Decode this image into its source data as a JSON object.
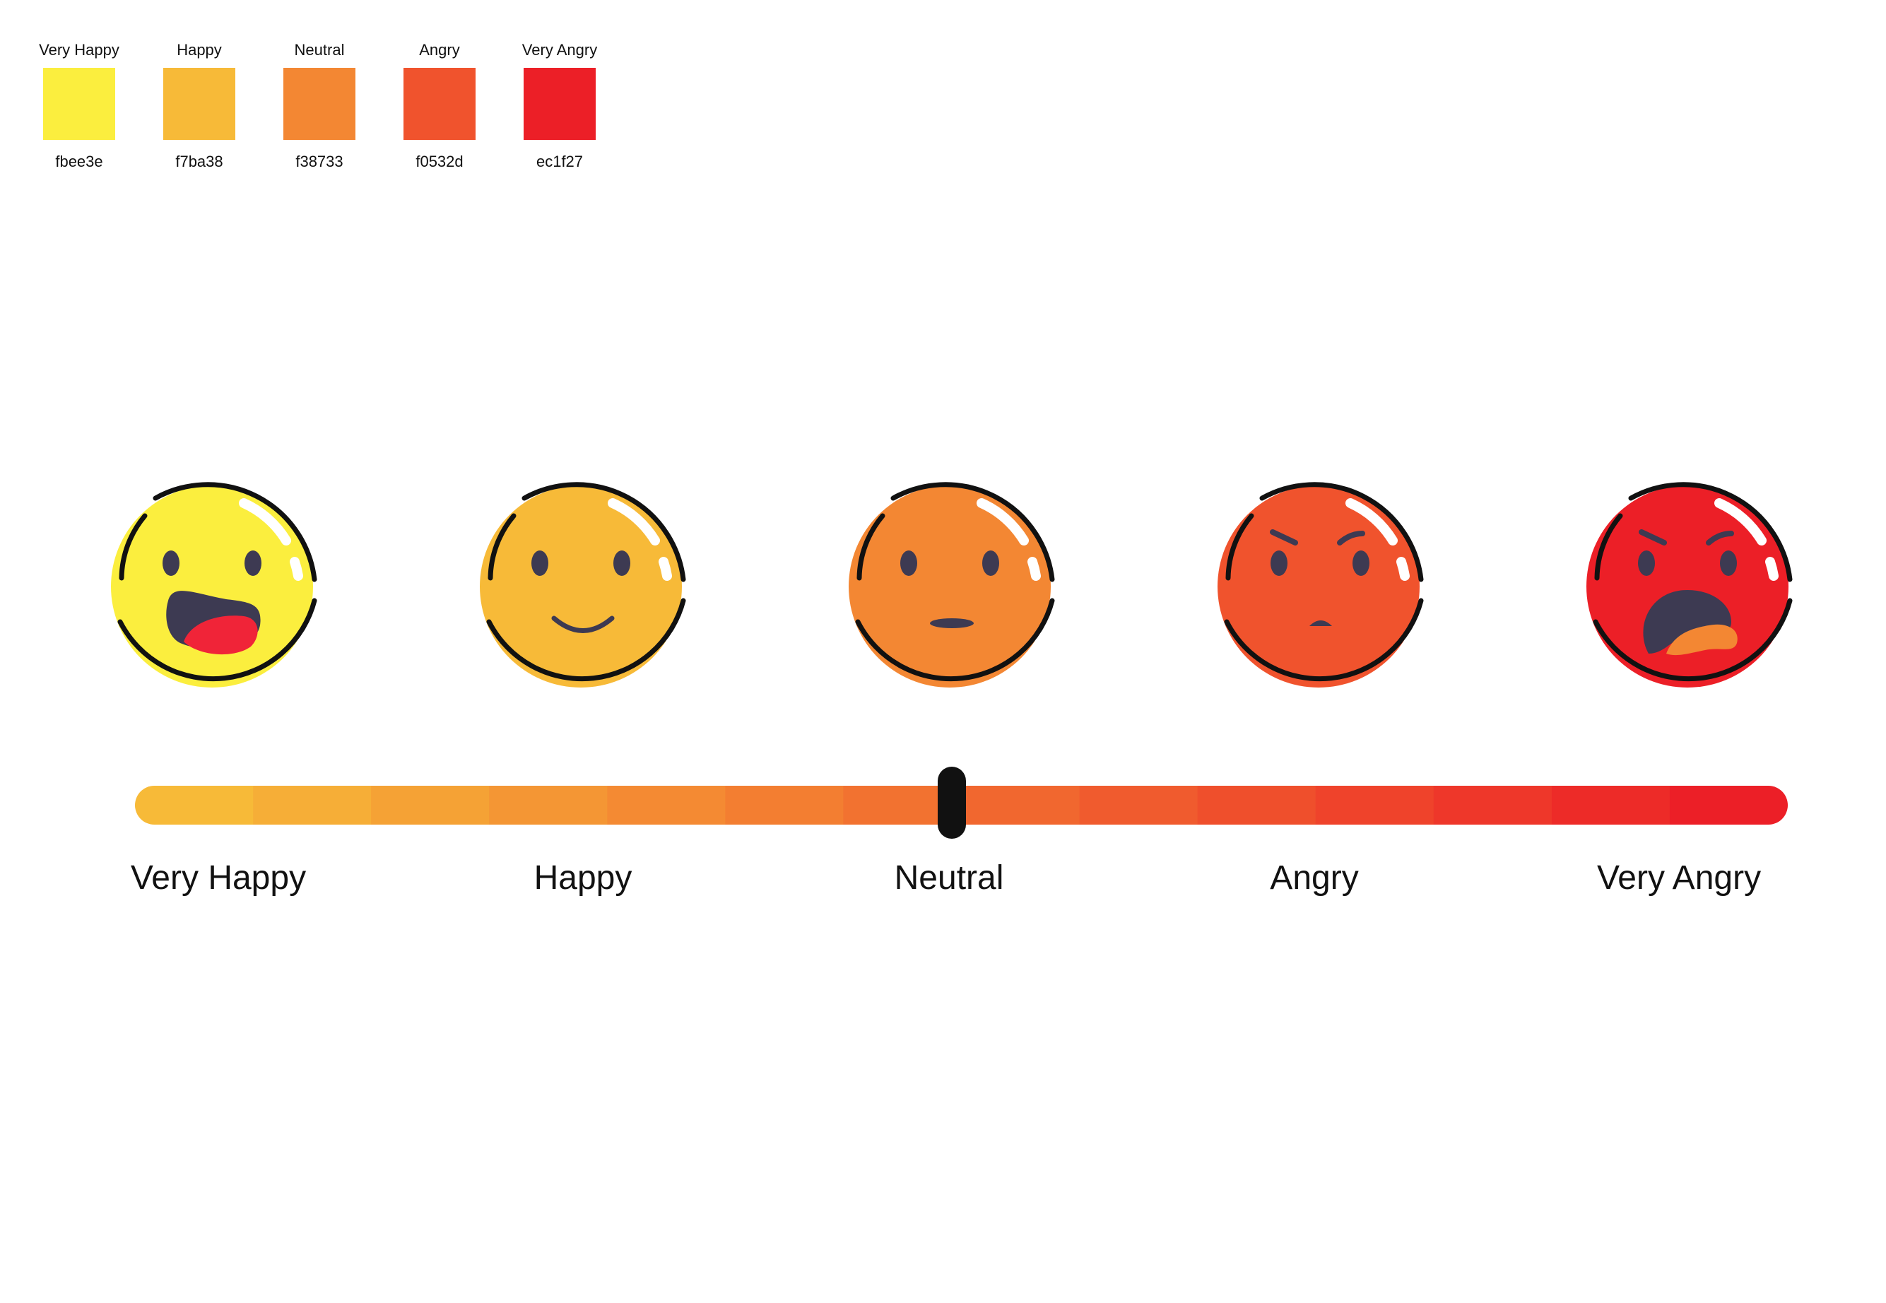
{
  "palette": [
    {
      "name": "Very Happy",
      "hex": "fbee3e",
      "color": "#fbee3e"
    },
    {
      "name": "Happy",
      "hex": "f7ba38",
      "color": "#f7ba38"
    },
    {
      "name": "Neutral",
      "hex": "f38733",
      "color": "#f38733"
    },
    {
      "name": "Angry",
      "hex": "f0532d",
      "color": "#f0532d"
    },
    {
      "name": "Very Angry",
      "hex": "ec1f27",
      "color": "#ec1f27"
    }
  ],
  "faces": [
    {
      "mood": "very-happy",
      "fill": "#fbee3e"
    },
    {
      "mood": "happy",
      "fill": "#f7ba38"
    },
    {
      "mood": "neutral",
      "fill": "#f38733"
    },
    {
      "mood": "angry",
      "fill": "#f0532d"
    },
    {
      "mood": "very-angry",
      "fill": "#ec1f27"
    }
  ],
  "scale": {
    "labels": [
      "Very Happy",
      "Happy",
      "Neutral",
      "Angry",
      "Very Angry"
    ],
    "segments": 14,
    "selected_fraction": 0.5,
    "start_color": "#f7ba38",
    "end_color": "#ec1f27"
  }
}
